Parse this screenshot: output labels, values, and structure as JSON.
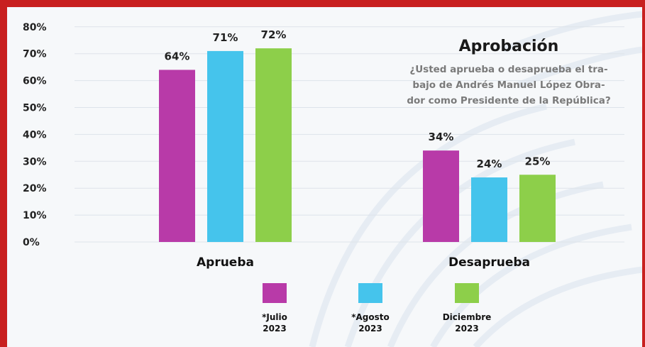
{
  "chart_data": {
    "type": "bar",
    "title": "Aprobación",
    "subtitle_lines": [
      "¿Usted aprueba o desaprueba el tra-",
      "bajo de Andrés Manuel López Obra-",
      "dor como Presidente de la República?"
    ],
    "categories": [
      "Aprueba",
      "Desaprueba"
    ],
    "series": [
      {
        "name": "*Julio 2023",
        "name_lines": [
          "*Julio",
          "2023"
        ],
        "color": "#b83aa8",
        "values": [
          64,
          34
        ],
        "labels": [
          "64%",
          "34%"
        ]
      },
      {
        "name": "*Agosto 2023",
        "name_lines": [
          "*Agosto",
          "2023"
        ],
        "color": "#45c4ec",
        "values": [
          71,
          24
        ],
        "labels": [
          "71%",
          "24%"
        ]
      },
      {
        "name": "Diciembre 2023",
        "name_lines": [
          "Diciembre",
          "2023"
        ],
        "color": "#8dcf4a",
        "values": [
          72,
          25
        ],
        "labels": [
          "72%",
          "25%"
        ]
      }
    ],
    "yticks": [
      "0%",
      "10%",
      "20%",
      "30%",
      "40%",
      "50%",
      "60%",
      "70%",
      "80%"
    ],
    "ylim": [
      0,
      80
    ],
    "grid": true,
    "legend": "bottom"
  }
}
